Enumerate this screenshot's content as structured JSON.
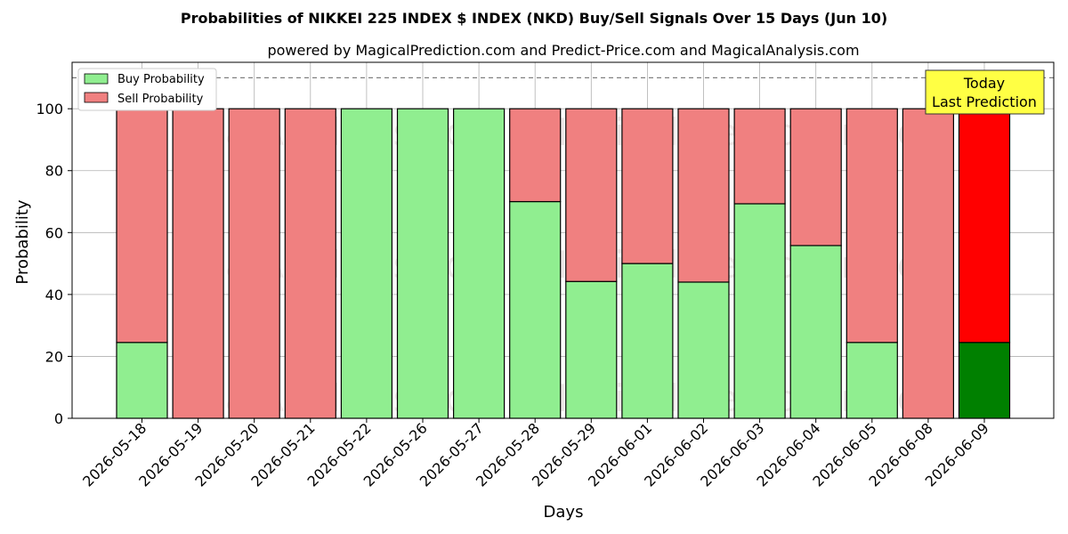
{
  "chart_data": {
    "type": "bar",
    "stacked": true,
    "title": "Probabilities of NIKKEI 225 INDEX $ INDEX (NKD) Buy/Sell Signals Over 15 Days (Jun 10)",
    "subtitle": "powered by MagicalPrediction.com and Predict-Price.com and MagicalAnalysis.com",
    "xlabel": "Days",
    "ylabel": "Probability",
    "ylim": [
      0,
      115
    ],
    "yticks": [
      0,
      20,
      40,
      60,
      80,
      100
    ],
    "reference_line": 110,
    "grid": true,
    "legend_position": "top-left",
    "categories": [
      "2026-05-18",
      "2026-05-19",
      "2026-05-20",
      "2026-05-21",
      "2026-05-22",
      "2026-05-26",
      "2026-05-27",
      "2026-05-28",
      "2026-05-29",
      "2026-06-01",
      "2026-06-02",
      "2026-06-03",
      "2026-06-04",
      "2026-06-05",
      "2026-06-08",
      "2026-06-09"
    ],
    "series": [
      {
        "name": "Buy Probability",
        "color": "#90ee90",
        "highlight_color": "#008000",
        "values": [
          24.5,
          0,
          0,
          0,
          100,
          100,
          100,
          70,
          44.2,
          50,
          44,
          69.3,
          55.8,
          24.5,
          0,
          24.5
        ]
      },
      {
        "name": "Sell Probability",
        "color": "#f08080",
        "highlight_color": "#ff0000",
        "values": [
          75.5,
          100,
          100,
          100,
          0,
          0,
          0,
          30,
          55.8,
          50,
          56,
          30.7,
          44.2,
          75.5,
          100,
          75.5
        ]
      }
    ],
    "highlight_index": 15,
    "annotation": {
      "line1": "Today",
      "line2": "Last Prediction",
      "color": "#ffff44"
    },
    "watermarks": [
      "MagicalAnalysis.com",
      "MagicalPrediction.com"
    ]
  }
}
